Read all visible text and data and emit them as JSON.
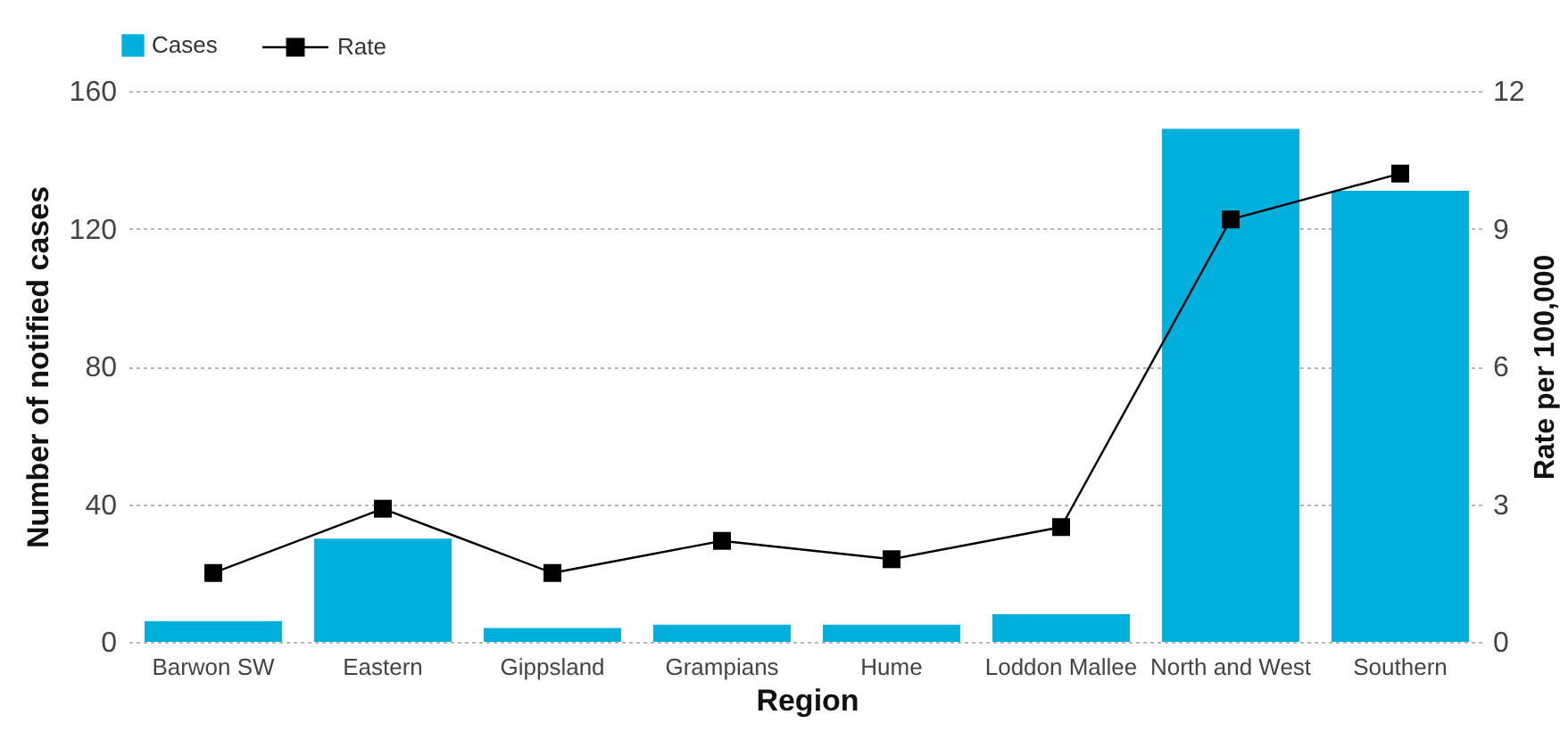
{
  "chart_data": {
    "type": "bar",
    "categories": [
      "Barwon SW",
      "Eastern",
      "Gippsland",
      "Grampians",
      "Hume",
      "Loddon Mallee",
      "North and West",
      "Southern"
    ],
    "series": [
      {
        "name": "Cases",
        "color": "#00b0dc",
        "values": [
          6,
          30,
          4,
          5,
          5,
          8,
          149,
          131
        ]
      },
      {
        "name": "Rate",
        "type": "line",
        "axis": "y2",
        "color": "#000000",
        "values": [
          1.5,
          2.9,
          1.5,
          2.2,
          1.8,
          2.5,
          9.2,
          10.2
        ]
      }
    ],
    "xlabel": "Region",
    "ylabel": "Number of notified cases",
    "y2label": "Rate per 100,000",
    "ylim": [
      0,
      160
    ],
    "yticks": [
      0,
      40,
      80,
      120,
      160
    ],
    "y2lim": [
      0,
      12
    ],
    "y2ticks": [
      0,
      3,
      6,
      9,
      12
    ],
    "grid": "y",
    "legend": "top left",
    "marker": "square",
    "line_style": "solid"
  }
}
